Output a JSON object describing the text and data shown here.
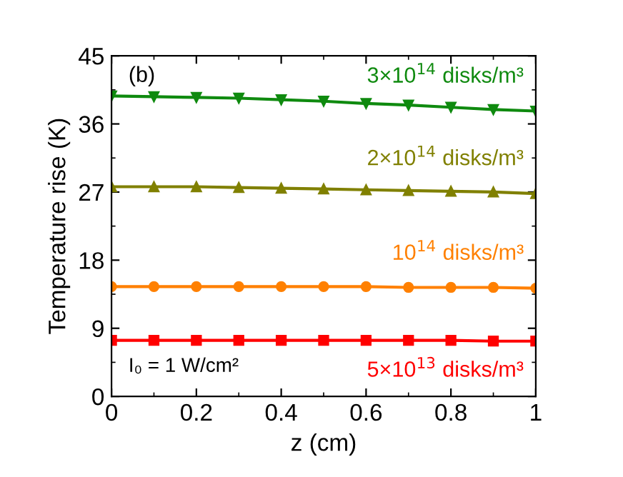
{
  "chart_data": {
    "type": "line",
    "xlabel": "z (cm)",
    "ylabel": "Temperature rise (K)",
    "x": [
      0,
      0.1,
      0.2,
      0.3,
      0.4,
      0.5,
      0.6,
      0.7,
      0.8,
      0.9,
      1
    ],
    "series": [
      {
        "name": "3×10$^{14}$ disks/m³",
        "color": "#0f8a0f",
        "marker": "triangle_down",
        "values": [
          39.7,
          39.6,
          39.5,
          39.4,
          39.2,
          39.0,
          38.7,
          38.5,
          38.2,
          37.9,
          37.7
        ]
      },
      {
        "name": "2×10$^{14}$ disks/m³",
        "color": "#808000",
        "marker": "triangle",
        "values": [
          27.7,
          27.7,
          27.7,
          27.6,
          27.5,
          27.4,
          27.3,
          27.2,
          27.1,
          27.0,
          26.8
        ]
      },
      {
        "name": "10$^{14}$ disks/m³",
        "color": "#ff8000",
        "marker": "circle",
        "values": [
          14.5,
          14.5,
          14.5,
          14.5,
          14.5,
          14.5,
          14.5,
          14.4,
          14.4,
          14.4,
          14.3
        ]
      },
      {
        "name": "5×10$^{13}$ disks/m³",
        "color": "#ff0000",
        "marker": "square",
        "values": [
          7.4,
          7.4,
          7.4,
          7.4,
          7.4,
          7.4,
          7.4,
          7.4,
          7.4,
          7.3,
          7.3
        ]
      }
    ],
    "xlim": [
      0,
      1
    ],
    "ylim": [
      0,
      45
    ],
    "xticks": [
      0,
      0.2,
      0.4,
      0.6,
      0.8,
      1
    ],
    "yticks": [
      0,
      9,
      18,
      27,
      36,
      45
    ],
    "annotations": [
      "(b)",
      "I₀ = 1 W/cm²"
    ],
    "legend": false,
    "grid": false,
    "line_style": "solid"
  }
}
